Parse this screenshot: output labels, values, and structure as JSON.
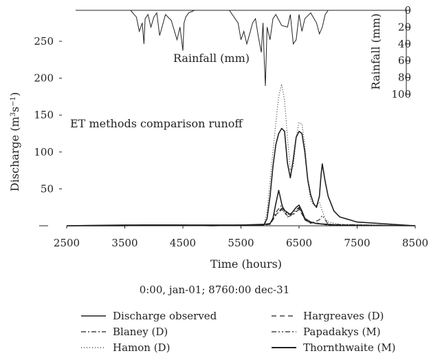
{
  "chart_data": {
    "type": "line",
    "title": "ET methods comparison runoff",
    "xlabel": "Time (hours)",
    "ylabel": "Discharge (m3 s−1)",
    "xlim": [
      2500,
      8500
    ],
    "ylim": [
      0,
      250
    ],
    "x_ticks": [
      "2500",
      "3500",
      "4500",
      "5500",
      "6500",
      "7500",
      "8500"
    ],
    "y_ticks": [
      "0",
      "50",
      "100",
      "150",
      "200",
      "250"
    ],
    "rainfall": {
      "label": "Rainfall (mm)",
      "axis_label": "Rainfall (mm)",
      "ylim": [
        0,
        100
      ],
      "y_ticks": [
        "0",
        "20",
        "40",
        "60",
        "80",
        "100"
      ],
      "x": [
        2800,
        3600,
        3700,
        3750,
        3800,
        3830,
        3850,
        3900,
        3950,
        4000,
        4050,
        4100,
        4200,
        4300,
        4400,
        4450,
        4500,
        4520,
        4550,
        4600,
        4700,
        4900,
        5100,
        5300,
        5450,
        5500,
        5550,
        5600,
        5650,
        5700,
        5750,
        5800,
        5850,
        5880,
        5900,
        5920,
        5950,
        6000,
        6050,
        6100,
        6200,
        6300,
        6350,
        6400,
        6450,
        6500,
        6550,
        6600,
        6700,
        6800,
        6850,
        6900,
        6950,
        7000
      ],
      "y": [
        0,
        0,
        8,
        25,
        15,
        40,
        10,
        5,
        20,
        8,
        3,
        30,
        5,
        12,
        35,
        20,
        48,
        15,
        8,
        3,
        0,
        0,
        0,
        0,
        15,
        35,
        25,
        40,
        28,
        15,
        10,
        32,
        50,
        15,
        58,
        90,
        20,
        35,
        10,
        5,
        18,
        20,
        5,
        40,
        35,
        5,
        25,
        10,
        3,
        15,
        28,
        20,
        5,
        0
      ]
    },
    "series": [
      {
        "name": "Discharge observed",
        "x": [
          2500,
          3500,
          3800,
          4500,
          5000,
          5500,
          5800,
          6000,
          6050,
          6100,
          6150,
          6200,
          6230,
          6300,
          6350,
          6400,
          6450,
          6500,
          6550,
          6600,
          6700,
          6800,
          7000,
          7200,
          8500
        ],
        "y": [
          0,
          0,
          1,
          1,
          0,
          1,
          1,
          3,
          10,
          30,
          48,
          30,
          22,
          18,
          15,
          20,
          25,
          28,
          20,
          10,
          5,
          3,
          2,
          1,
          0
        ]
      },
      {
        "name": "Blaney (D)",
        "x": [
          2500,
          5800,
          6000,
          6100,
          6200,
          6300,
          6400,
          6500,
          6550,
          6600,
          6700,
          6900,
          7000,
          8500
        ],
        "y": [
          0,
          0,
          3,
          18,
          28,
          15,
          18,
          25,
          18,
          8,
          4,
          2,
          1,
          0
        ]
      },
      {
        "name": "Hamon (D)",
        "x": [
          2500,
          3500,
          5500,
          5900,
          5950,
          6000,
          6050,
          6100,
          6150,
          6200,
          6250,
          6300,
          6350,
          6400,
          6450,
          6500,
          6550,
          6600,
          6650,
          6700,
          6750,
          6800,
          6850,
          6900,
          6950,
          7000,
          7200,
          8500
        ],
        "y": [
          0,
          1,
          1,
          2,
          20,
          60,
          100,
          140,
          175,
          192,
          170,
          120,
          75,
          80,
          120,
          140,
          138,
          110,
          60,
          35,
          28,
          28,
          32,
          20,
          10,
          5,
          2,
          0
        ]
      },
      {
        "name": "Hargreaves (D)",
        "x": [
          2500,
          5800,
          6000,
          6100,
          6200,
          6300,
          6400,
          6500,
          6550,
          6600,
          6700,
          6800,
          6900,
          7000,
          8500
        ],
        "y": [
          0,
          0,
          2,
          15,
          22,
          14,
          16,
          22,
          16,
          8,
          5,
          4,
          2,
          1,
          0
        ]
      },
      {
        "name": "Papadakys (M)",
        "x": [
          2500,
          5800,
          6000,
          6100,
          6200,
          6300,
          6400,
          6500,
          6550,
          6600,
          6700,
          6850,
          6900,
          7000,
          8500
        ],
        "y": [
          0,
          0,
          2,
          14,
          24,
          12,
          15,
          24,
          18,
          8,
          3,
          8,
          14,
          2,
          0
        ]
      },
      {
        "name": "Thornthwaite (M)",
        "x": [
          2500,
          3500,
          5500,
          5900,
          5950,
          6000,
          6050,
          6100,
          6150,
          6200,
          6250,
          6300,
          6350,
          6400,
          6450,
          6500,
          6550,
          6600,
          6650,
          6700,
          6750,
          6800,
          6850,
          6880,
          6900,
          6950,
          7000,
          7100,
          7200,
          7500,
          8500
        ],
        "y": [
          0,
          1,
          1,
          2,
          10,
          40,
          80,
          110,
          125,
          132,
          128,
          85,
          65,
          90,
          120,
          128,
          125,
          100,
          62,
          42,
          30,
          25,
          40,
          70,
          84,
          60,
          40,
          20,
          12,
          5,
          0
        ]
      }
    ]
  },
  "subtitle": "0:00, jan-01; 8760:00 dec-31",
  "legend": [
    {
      "label": "Discharge observed",
      "style": "solid"
    },
    {
      "label": "Hargreaves (D)",
      "style": "dash"
    },
    {
      "label": "Blaney (D)",
      "style": "dashdot"
    },
    {
      "label": "Papadakys (M)",
      "style": "dashdotdot"
    },
    {
      "label": "Hamon (D)",
      "style": "dot"
    },
    {
      "label": "Thornthwaite (M)",
      "style": "solid-thick"
    }
  ]
}
